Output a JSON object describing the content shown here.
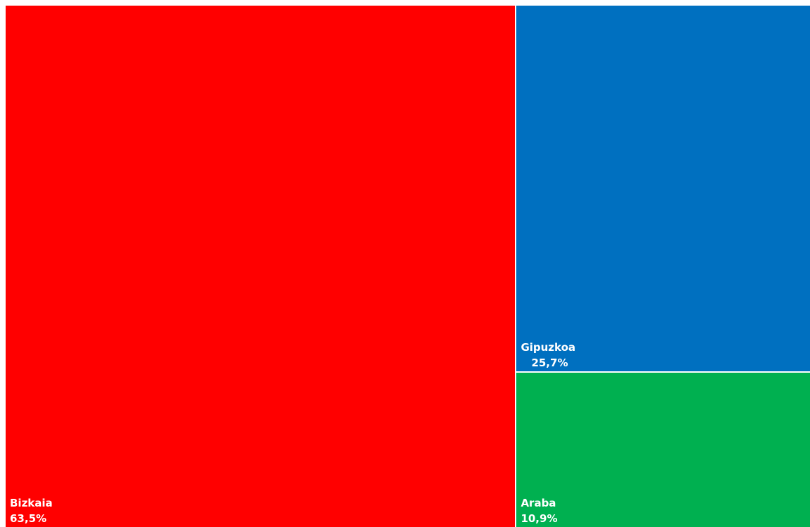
{
  "chart_data": {
    "type": "treemap",
    "title": "",
    "items": [
      {
        "name": "Bizkaia",
        "label": "63,5%",
        "value": 63.5,
        "color": "#ff0000"
      },
      {
        "name": "Gipuzkoa",
        "label": "25,7%",
        "value": 25.7,
        "color": "#0070c0"
      },
      {
        "name": "Araba",
        "label": "10,9%",
        "value": 10.9,
        "color": "#00b050"
      }
    ]
  }
}
